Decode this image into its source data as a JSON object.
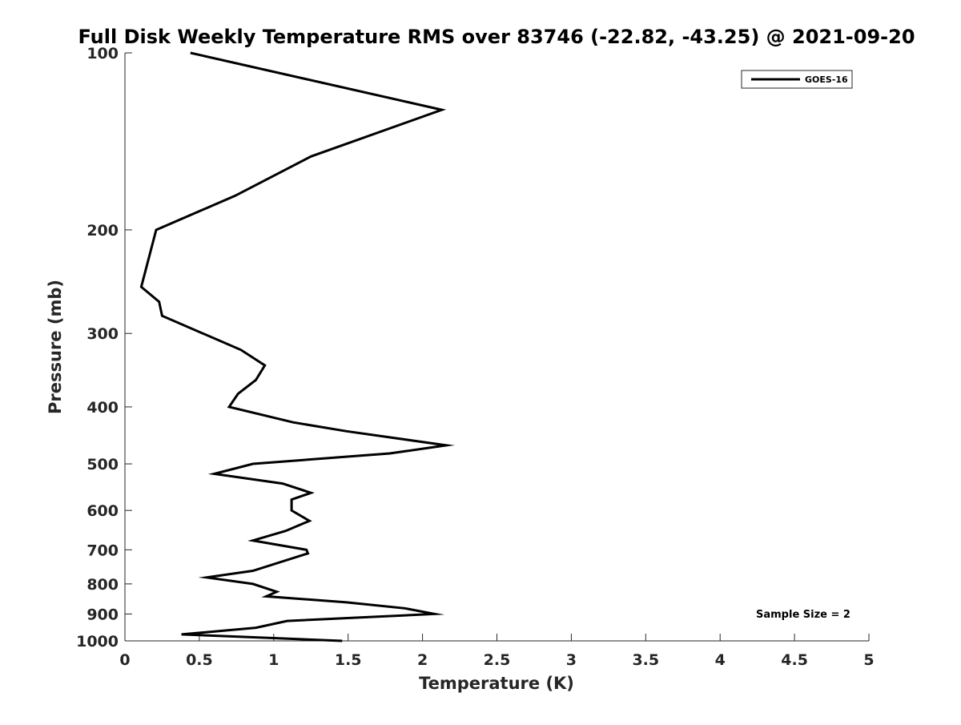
{
  "chart_data": {
    "type": "line",
    "title": "Full Disk Weekly Temperature RMS over 83746 (-22.82, -43.25) @ 2021-09-20",
    "xlabel": "Temperature (K)",
    "ylabel": "Pressure (mb)",
    "xlim": [
      0,
      5
    ],
    "ylim": [
      100,
      1000
    ],
    "y_scale": "log",
    "y_reversed": true,
    "x_ticks": [
      "0",
      "0.5",
      "1",
      "1.5",
      "2",
      "2.5",
      "3",
      "3.5",
      "4",
      "4.5",
      "5"
    ],
    "y_ticks": [
      "100",
      "200",
      "300",
      "400",
      "500",
      "600",
      "700",
      "800",
      "900",
      "1000"
    ],
    "grid": false,
    "legend_position": "top-right",
    "annotation": "Sample Size = 2",
    "series": [
      {
        "name": "GOES-16",
        "color": "#000000",
        "points": [
          {
            "x": 0.44,
            "p": 100
          },
          {
            "x": 2.13,
            "p": 125
          },
          {
            "x": 1.25,
            "p": 150
          },
          {
            "x": 0.74,
            "p": 175
          },
          {
            "x": 0.21,
            "p": 200
          },
          {
            "x": 0.11,
            "p": 250
          },
          {
            "x": 0.23,
            "p": 265
          },
          {
            "x": 0.25,
            "p": 280
          },
          {
            "x": 0.78,
            "p": 320
          },
          {
            "x": 0.94,
            "p": 340
          },
          {
            "x": 0.88,
            "p": 360
          },
          {
            "x": 0.76,
            "p": 380
          },
          {
            "x": 0.7,
            "p": 400
          },
          {
            "x": 1.13,
            "p": 425
          },
          {
            "x": 1.49,
            "p": 440
          },
          {
            "x": 2.16,
            "p": 465
          },
          {
            "x": 1.78,
            "p": 480
          },
          {
            "x": 0.86,
            "p": 500
          },
          {
            "x": 0.6,
            "p": 520
          },
          {
            "x": 1.06,
            "p": 540
          },
          {
            "x": 1.25,
            "p": 560
          },
          {
            "x": 1.12,
            "p": 575
          },
          {
            "x": 1.12,
            "p": 600
          },
          {
            "x": 1.24,
            "p": 625
          },
          {
            "x": 1.08,
            "p": 650
          },
          {
            "x": 0.86,
            "p": 675
          },
          {
            "x": 1.22,
            "p": 700
          },
          {
            "x": 1.23,
            "p": 710
          },
          {
            "x": 0.86,
            "p": 760
          },
          {
            "x": 0.55,
            "p": 780
          },
          {
            "x": 0.86,
            "p": 800
          },
          {
            "x": 1.02,
            "p": 825
          },
          {
            "x": 0.95,
            "p": 840
          },
          {
            "x": 1.49,
            "p": 860
          },
          {
            "x": 1.88,
            "p": 880
          },
          {
            "x": 2.08,
            "p": 900
          },
          {
            "x": 1.09,
            "p": 925
          },
          {
            "x": 0.88,
            "p": 950
          },
          {
            "x": 0.38,
            "p": 975
          },
          {
            "x": 1.46,
            "p": 1000
          }
        ]
      }
    ]
  }
}
